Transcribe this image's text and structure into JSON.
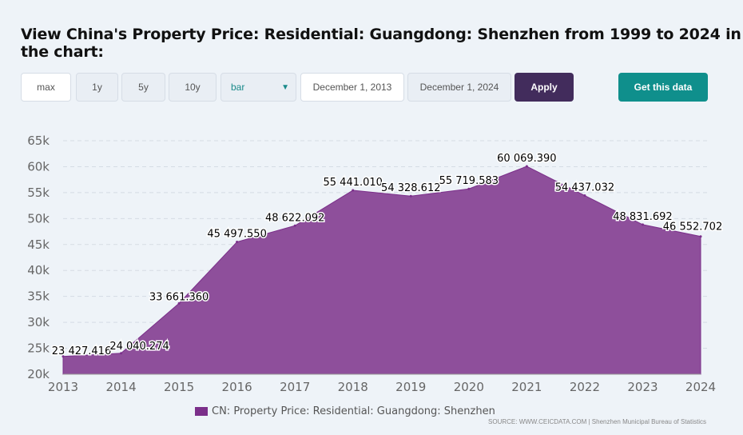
{
  "title": "View China's Property Price: Residential: Guangdong: Shenzhen from 1999 to 2024 in the chart:",
  "controls": {
    "max": "max",
    "y1": "1y",
    "y5": "5y",
    "y10": "10y",
    "chart_type": "bar",
    "start_date": "December 1, 2013",
    "end_date": "December 1, 2024",
    "apply": "Apply",
    "get_data": "Get this data"
  },
  "colors": {
    "area": "#8e4f9b",
    "line": "#7b2f8a",
    "apply": "#422c5c",
    "get": "#0f8f8c"
  },
  "chart_data": {
    "type": "area",
    "x": [
      "2013",
      "2014",
      "2015",
      "2016",
      "2017",
      "2018",
      "2019",
      "2020",
      "2021",
      "2022",
      "2023",
      "2024"
    ],
    "values": [
      23427.416,
      24040.274,
      33661.36,
      45497.55,
      48622.092,
      55441.01,
      54328.612,
      55719.583,
      60069.39,
      54437.032,
      48831.692,
      46552.702
    ],
    "labels": [
      "23 427.416",
      "24 040.274",
      "33 661.360",
      "45 497.550",
      "48 622.092",
      "55 441.010",
      "54 328.612",
      "55 719.583",
      "60 069.390",
      "54 437.032",
      "48 831.692",
      "46 552.702"
    ],
    "yticks": [
      "20k",
      "25k",
      "30k",
      "35k",
      "40k",
      "45k",
      "50k",
      "55k",
      "60k",
      "65k"
    ],
    "ylim": [
      20000,
      65000
    ],
    "legend": "CN: Property Price: Residential: Guangdong: Shenzhen",
    "source": "SOURCE: WWW.CEICDATA.COM | Shenzhen Municipal Bureau of Statistics",
    "grid": true
  }
}
